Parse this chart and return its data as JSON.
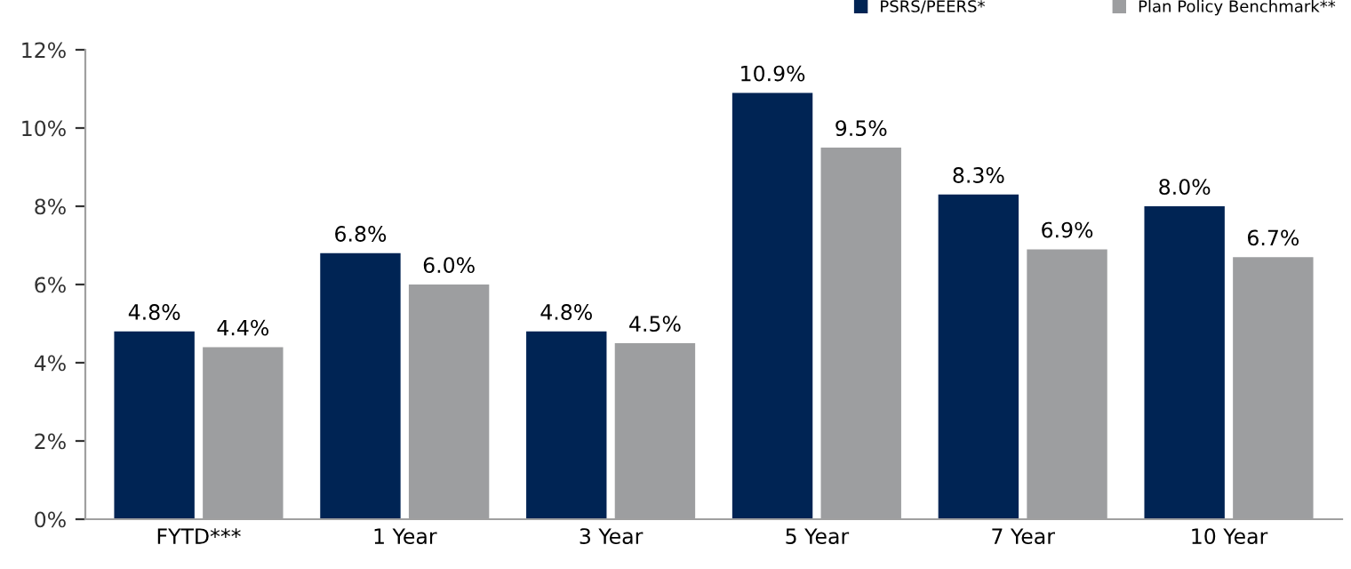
{
  "chart_data": {
    "type": "bar",
    "categories": [
      "FYTD***",
      "1 Year",
      "3 Year",
      "5 Year",
      "7 Year",
      "10 Year"
    ],
    "series": [
      {
        "name": "PSRS/PEERS*",
        "color": "#002454",
        "values": [
          4.8,
          6.8,
          4.8,
          10.9,
          8.3,
          8.0
        ],
        "value_labels": [
          "4.8%",
          "6.8%",
          "4.8%",
          "10.9%",
          "8.3%",
          "8.0%"
        ]
      },
      {
        "name": "Plan Policy Benchmark**",
        "color": "#9d9ea0",
        "values": [
          4.4,
          6.0,
          4.5,
          9.5,
          6.9,
          6.7
        ],
        "value_labels": [
          "4.4%",
          "6.0%",
          "4.5%",
          "9.5%",
          "6.9%",
          "6.7%"
        ]
      }
    ],
    "ylim": [
      0,
      12
    ],
    "yticks": [
      {
        "value": 0,
        "label": "0%"
      },
      {
        "value": 2,
        "label": "2%"
      },
      {
        "value": 4,
        "label": "4%"
      },
      {
        "value": 6,
        "label": "6%"
      },
      {
        "value": 8,
        "label": "8%"
      },
      {
        "value": 10,
        "label": "10%"
      },
      {
        "value": 12,
        "label": "12%"
      }
    ],
    "grid": false,
    "legend": "top right"
  }
}
